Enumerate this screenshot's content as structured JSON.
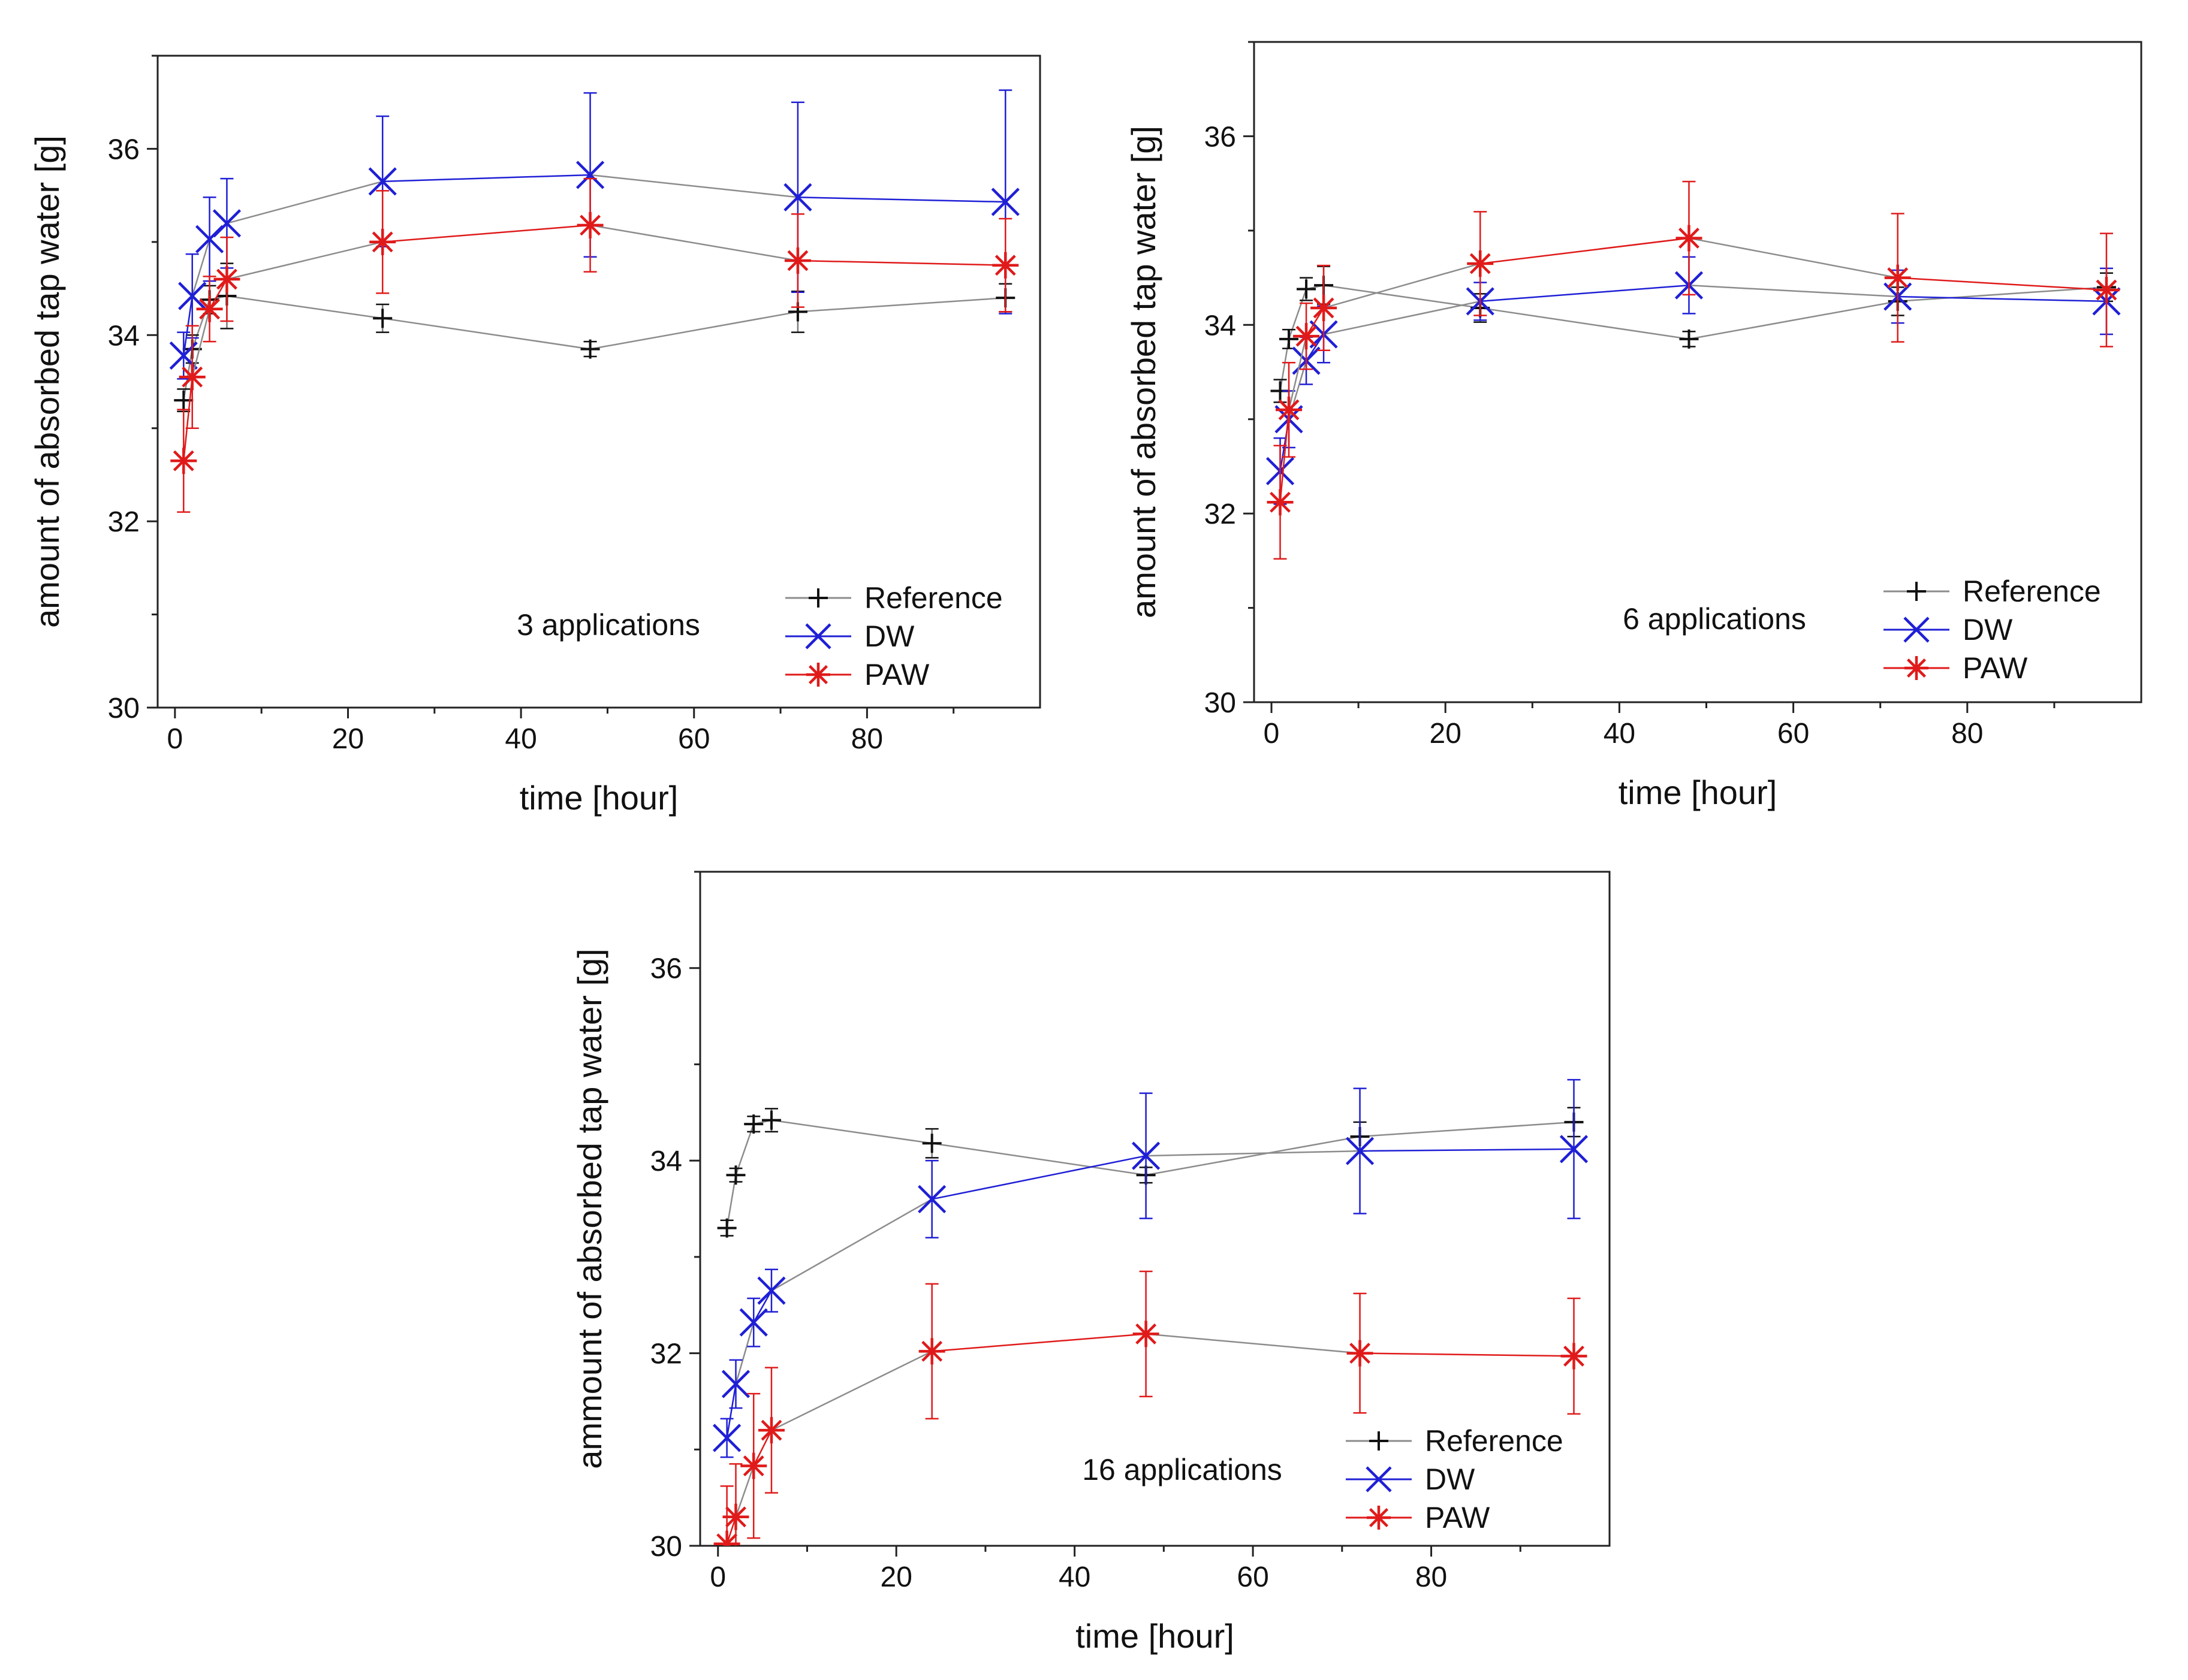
{
  "colors": {
    "reference": "#111111",
    "dw": "#1f1fd6",
    "paw": "#e01a1a",
    "connector": "#8c8c8c",
    "frame": "#222222"
  },
  "chart_data": [
    {
      "type": "line",
      "annotation": "3 applications",
      "xlabel": "time [hour]",
      "ylabel": "amount of absorbed tap water [g]",
      "xlim": [
        -2,
        100
      ],
      "ylim": [
        30,
        37
      ],
      "xticks": [
        0,
        20,
        40,
        60,
        80
      ],
      "yticks": [
        30,
        32,
        34,
        36
      ],
      "x_tick_labels": [
        "0",
        "20",
        "40",
        "60",
        "80"
      ],
      "y_tick_labels": [
        "30",
        "32",
        "34",
        "36"
      ],
      "legend_position": "bottom-right",
      "x": [
        1,
        2,
        4,
        6,
        24,
        48,
        72,
        96
      ],
      "series": [
        {
          "name": "Reference",
          "values": [
            33.3,
            33.85,
            34.38,
            34.42,
            34.18,
            33.85,
            34.25,
            34.4
          ],
          "errors": [
            0.12,
            0.15,
            0.15,
            0.35,
            0.15,
            0.08,
            0.22,
            0.15
          ]
        },
        {
          "name": "DW",
          "values": [
            33.78,
            34.42,
            35.03,
            35.2,
            35.65,
            35.72,
            35.48,
            35.43
          ],
          "errors": [
            0.25,
            0.45,
            0.45,
            0.48,
            0.7,
            0.88,
            1.02,
            1.2
          ]
        },
        {
          "name": "PAW",
          "values": [
            32.65,
            33.55,
            34.28,
            34.6,
            35.0,
            35.18,
            34.8,
            34.75
          ],
          "errors": [
            0.55,
            0.55,
            0.35,
            0.45,
            0.55,
            0.5,
            0.5,
            0.5
          ]
        }
      ]
    },
    {
      "type": "line",
      "annotation": "6 applications",
      "xlabel": "time [hour]",
      "ylabel": "amount of absorbed tap water [g]",
      "xlim": [
        -2,
        100
      ],
      "ylim": [
        30,
        37
      ],
      "xticks": [
        0,
        20,
        40,
        60,
        80
      ],
      "yticks": [
        30,
        32,
        34,
        36
      ],
      "x_tick_labels": [
        "0",
        "20",
        "40",
        "60",
        "80"
      ],
      "y_tick_labels": [
        "30",
        "32",
        "34",
        "36"
      ],
      "legend_position": "bottom-right",
      "x": [
        1,
        2,
        4,
        6,
        24,
        48,
        72,
        96
      ],
      "series": [
        {
          "name": "Reference",
          "values": [
            33.3,
            33.85,
            34.38,
            34.42,
            34.18,
            33.85,
            34.25,
            34.4
          ],
          "errors": [
            0.12,
            0.1,
            0.12,
            0.2,
            0.15,
            0.08,
            0.15,
            0.15
          ]
        },
        {
          "name": "DW",
          "values": [
            32.45,
            33.0,
            33.62,
            33.9,
            34.25,
            34.42,
            34.3,
            34.25
          ],
          "errors": [
            0.35,
            0.3,
            0.25,
            0.3,
            0.2,
            0.3,
            0.28,
            0.35
          ]
        },
        {
          "name": "PAW",
          "values": [
            32.12,
            33.1,
            33.88,
            34.18,
            34.65,
            34.92,
            34.5,
            34.37
          ],
          "errors": [
            0.6,
            0.5,
            0.35,
            0.45,
            0.55,
            0.6,
            0.68,
            0.6
          ]
        }
      ]
    },
    {
      "type": "line",
      "annotation": "16 applications",
      "xlabel": "time [hour]",
      "ylabel": "ammount of absorbed tap water [g]",
      "xlim": [
        -2,
        100
      ],
      "ylim": [
        30,
        37
      ],
      "xticks": [
        0,
        20,
        40,
        60,
        80
      ],
      "yticks": [
        30,
        32,
        34,
        36
      ],
      "x_tick_labels": [
        "0",
        "20",
        "40",
        "60",
        "80"
      ],
      "y_tick_labels": [
        "30",
        "32",
        "34",
        "36"
      ],
      "legend_position": "bottom-right",
      "x": [
        1,
        2,
        4,
        6,
        24,
        48,
        72,
        96
      ],
      "series": [
        {
          "name": "Reference",
          "values": [
            33.3,
            33.85,
            34.38,
            34.42,
            34.18,
            33.85,
            34.25,
            34.4
          ],
          "errors": [
            0.08,
            0.07,
            0.08,
            0.12,
            0.15,
            0.08,
            0.15,
            0.15
          ]
        },
        {
          "name": "DW",
          "values": [
            31.12,
            31.68,
            32.32,
            32.65,
            33.6,
            34.05,
            34.1,
            34.12
          ],
          "errors": [
            0.2,
            0.25,
            0.25,
            0.22,
            0.4,
            0.65,
            0.65,
            0.72
          ]
        },
        {
          "name": "PAW",
          "values": [
            30.02,
            30.3,
            30.83,
            31.2,
            32.02,
            32.2,
            32.0,
            31.97
          ],
          "errors": [
            0.6,
            0.55,
            0.75,
            0.65,
            0.7,
            0.65,
            0.62,
            0.6
          ]
        }
      ]
    }
  ]
}
